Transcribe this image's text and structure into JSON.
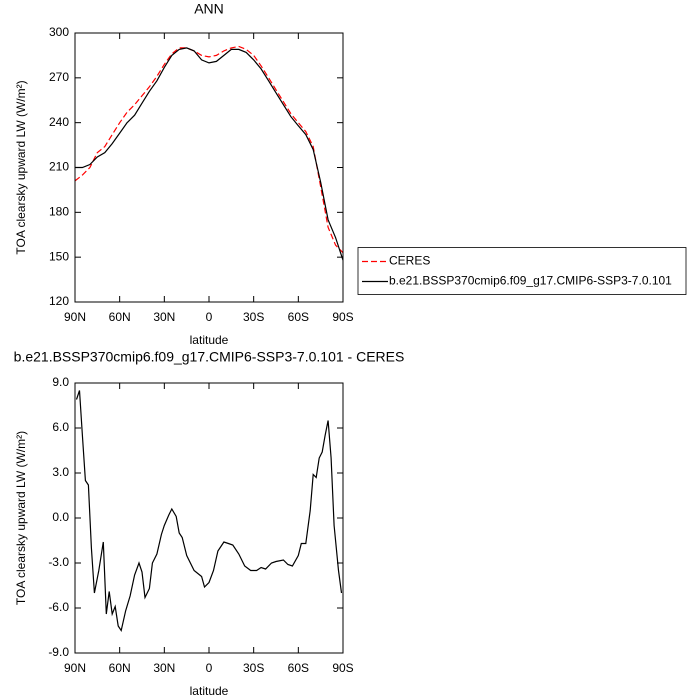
{
  "chart_data": [
    {
      "type": "line",
      "title": "ANN",
      "x_label": "latitude",
      "y_label": "TOA clearsky upward LW (W/m²)",
      "x": [
        90,
        85,
        80,
        75,
        70,
        65,
        60,
        55,
        50,
        45,
        40,
        35,
        30,
        25,
        20,
        15,
        10,
        5,
        0,
        -5,
        -10,
        -15,
        -20,
        -25,
        -30,
        -35,
        -40,
        -45,
        -50,
        -55,
        -60,
        -65,
        -70,
        -75,
        -80,
        -85,
        -90
      ],
      "series": [
        {
          "name": "CERES",
          "color": "#ff0000",
          "linestyle": "dashed",
          "values": [
            201,
            205,
            210,
            220,
            224,
            232,
            240,
            247,
            252,
            258,
            264,
            271,
            279,
            286,
            290,
            290,
            288,
            285,
            284,
            285,
            288,
            290,
            291,
            289,
            285,
            278,
            270,
            262,
            254,
            246,
            240,
            234,
            224,
            197,
            170,
            158,
            153
          ]
        },
        {
          "name": "b.e21.BSSP370cmip6.f09_g17.CMIP6-SSP3-7.0.101",
          "color": "#000000",
          "linestyle": "solid",
          "values": [
            210,
            210,
            212,
            217,
            220,
            226,
            233,
            240,
            245,
            253,
            261,
            268,
            277,
            285,
            289,
            290,
            288,
            282,
            280,
            281,
            285,
            289,
            289,
            287,
            282,
            276,
            268,
            260,
            252,
            244,
            238,
            232,
            222,
            200,
            175,
            163,
            148
          ]
        }
      ],
      "xlim": [
        90,
        -90
      ],
      "xticks": [
        {
          "value": 90,
          "label": "90N"
        },
        {
          "value": 60,
          "label": "60N"
        },
        {
          "value": 30,
          "label": "30N"
        },
        0,
        {
          "value": -30,
          "label": "30S"
        },
        {
          "value": -60,
          "label": "60S"
        },
        {
          "value": -90,
          "label": "90S"
        }
      ],
      "ylim": [
        120,
        300
      ],
      "yticks": [
        120,
        150,
        180,
        210,
        240,
        270,
        300
      ],
      "legend": "right"
    },
    {
      "type": "line",
      "title": "b.e21.BSSP370cmip6.f09_g17.CMIP6-SSP3-7.0.101 - CERES",
      "x_label": "latitude",
      "y_label": "TOA clearsky upward LW (W/m²)",
      "x": [
        89,
        87,
        85,
        83,
        81,
        79,
        77,
        74,
        71,
        69,
        67,
        65,
        63,
        61,
        59,
        56,
        53,
        50,
        47,
        45,
        43,
        40,
        38,
        35,
        32,
        30,
        27,
        25,
        22,
        20,
        18,
        15,
        10,
        5,
        3,
        0,
        -3,
        -6,
        -10,
        -13,
        -16,
        -20,
        -24,
        -28,
        -32,
        -35,
        -38,
        -42,
        -45,
        -50,
        -53,
        -56,
        -60,
        -62,
        -65,
        -68,
        -70,
        -72,
        -74,
        -76,
        -78,
        -80,
        -82,
        -84,
        -87,
        -89
      ],
      "values": [
        7.9,
        8.5,
        5.5,
        2.5,
        2.2,
        -2,
        -5,
        -3.5,
        -1.6,
        -6.4,
        -4.9,
        -6.4,
        -5.9,
        -7.2,
        -7.5,
        -6.2,
        -5.2,
        -3.8,
        -3,
        -3.6,
        -5.3,
        -4.7,
        -3,
        -2.4,
        -1.1,
        -0.5,
        0.2,
        0.6,
        0.1,
        -1,
        -1.3,
        -2.5,
        -3.5,
        -3.9,
        -4.6,
        -4.3,
        -3.5,
        -2.2,
        -1.6,
        -1.7,
        -1.8,
        -2.4,
        -3.2,
        -3.5,
        -3.5,
        -3.3,
        -3.4,
        -3,
        -2.9,
        -2.8,
        -3.1,
        -3.2,
        -2.5,
        -1.7,
        -1.7,
        0.5,
        2.9,
        2.7,
        4,
        4.4,
        5.5,
        6.5,
        4,
        -0.5,
        -3.5,
        -5
      ],
      "color": "#000000",
      "xlim": [
        90,
        -90
      ],
      "xticks": [
        {
          "value": 90,
          "label": "90N"
        },
        {
          "value": 60,
          "label": "60N"
        },
        {
          "value": 30,
          "label": "30N"
        },
        0,
        {
          "value": -30,
          "label": "30S"
        },
        {
          "value": -60,
          "label": "60S"
        },
        {
          "value": -90,
          "label": "90S"
        }
      ],
      "ylim": [
        -9,
        9
      ],
      "yticks": [
        {
          "value": -9,
          "label": "-9.0"
        },
        {
          "value": -6,
          "label": "-6.0"
        },
        {
          "value": -3,
          "label": "-3.0"
        },
        {
          "value": 0,
          "label": "0.0"
        },
        {
          "value": 3,
          "label": "3.0"
        },
        {
          "value": 6,
          "label": "6.0"
        },
        {
          "value": 9,
          "label": "9.0"
        }
      ]
    }
  ]
}
